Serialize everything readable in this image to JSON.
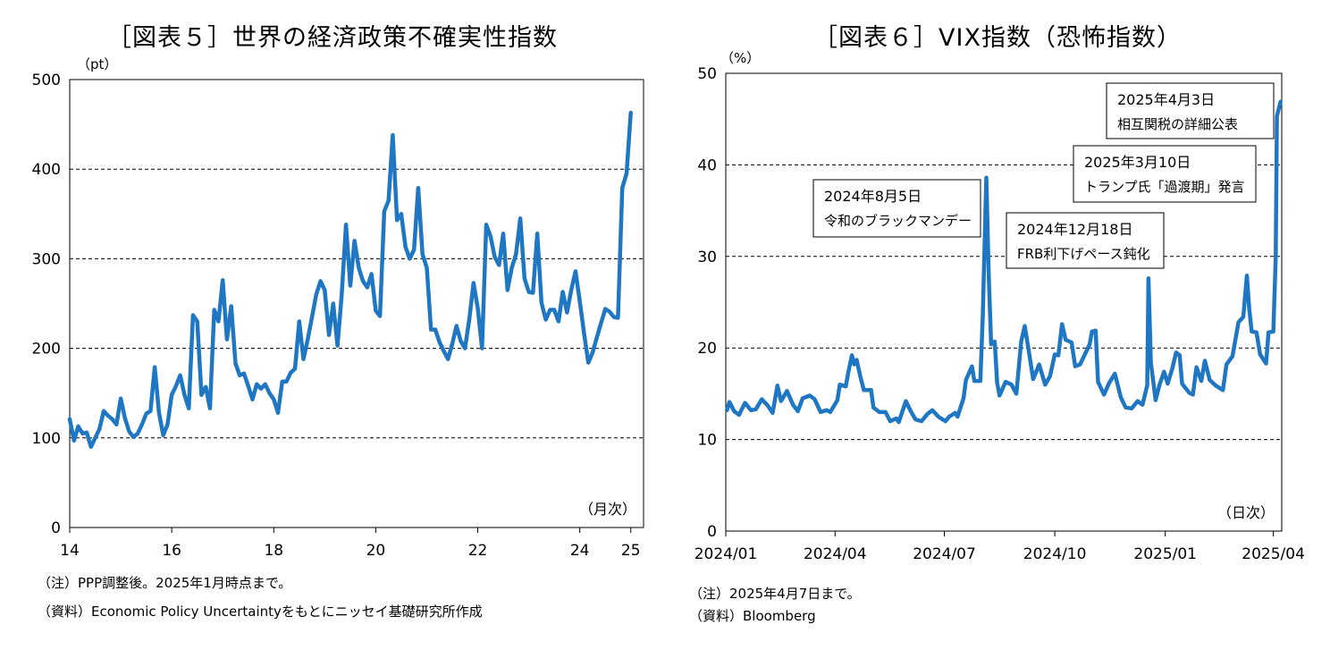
{
  "chart_data": [
    {
      "type": "line",
      "title": "［図表５］世界の経済政策不確実性指数",
      "unit_label": "（pt）",
      "frequency_label": "（月次）",
      "ylim": [
        0,
        500
      ],
      "yticks": [
        0,
        100,
        200,
        300,
        400,
        500
      ],
      "xlim": [
        2014,
        2025.25
      ],
      "xtick_labels": [
        "14",
        "16",
        "18",
        "20",
        "22",
        "24",
        "25"
      ],
      "xtick_positions": [
        2014,
        2016,
        2018,
        2020,
        2022,
        2024,
        2025
      ],
      "grid": "horizontal dashed",
      "color": "#1f77c4",
      "series": [
        {
          "x_start": 2014.0,
          "x_step": 0.08333,
          "values": [
            121,
            97,
            113,
            105,
            106,
            90,
            100,
            110,
            130,
            125,
            121,
            115,
            144,
            122,
            107,
            101,
            105,
            115,
            127,
            130,
            179,
            128,
            103,
            115,
            148,
            158,
            170,
            148,
            133,
            237,
            230,
            148,
            157,
            133,
            243,
            230,
            276,
            210,
            247,
            183,
            170,
            172,
            158,
            143,
            160,
            155,
            160,
            150,
            143,
            128,
            163,
            163,
            173,
            177,
            230,
            188,
            210,
            235,
            260,
            275,
            265,
            215,
            250,
            203,
            260,
            338,
            270,
            320,
            290,
            275,
            268,
            283,
            242,
            236,
            353,
            365,
            438,
            343,
            350,
            313,
            300,
            310,
            379,
            305,
            290,
            221,
            221,
            207,
            197,
            188,
            205,
            225,
            208,
            200,
            232,
            273,
            245,
            200,
            338,
            325,
            302,
            293,
            328,
            265,
            290,
            305,
            345,
            278,
            263,
            262,
            328,
            251,
            232,
            243,
            243,
            230,
            263,
            240,
            265,
            286,
            253,
            217,
            184,
            195,
            212,
            228,
            244,
            241,
            235,
            234,
            379,
            395,
            463
          ]
        }
      ],
      "notes": [
        "（注）PPP調整後。2025年1月時点まで。",
        "（資料）Economic Policy Uncertaintyをもとにニッセイ基礎研究所作成"
      ]
    },
    {
      "type": "line",
      "title": "［図表６］VIX指数（恐怖指数）",
      "unit_label": "（%）",
      "frequency_label": "（日次）",
      "ylim": [
        0,
        50
      ],
      "yticks": [
        0,
        10,
        20,
        30,
        40,
        50
      ],
      "xlim": [
        "2024-01-01",
        "2025-04-08"
      ],
      "xtick_labels": [
        "2024/01",
        "2024/04",
        "2024/07",
        "2024/10",
        "2025/01",
        "2025/04"
      ],
      "xtick_dates": [
        "2024-01-01",
        "2024-04-01",
        "2024-07-01",
        "2024-10-01",
        "2025-01-01",
        "2025-04-01"
      ],
      "grid": "horizontal dashed",
      "color": "#1f77c4",
      "series": [
        {
          "points": [
            [
              "2024-01-02",
              13.2
            ],
            [
              "2024-01-04",
              14.1
            ],
            [
              "2024-01-08",
              13.1
            ],
            [
              "2024-01-12",
              12.7
            ],
            [
              "2024-01-17",
              14.0
            ],
            [
              "2024-01-22",
              13.2
            ],
            [
              "2024-01-26",
              13.3
            ],
            [
              "2024-01-31",
              14.4
            ],
            [
              "2024-02-05",
              13.7
            ],
            [
              "2024-02-09",
              12.9
            ],
            [
              "2024-02-13",
              15.9
            ],
            [
              "2024-02-16",
              14.2
            ],
            [
              "2024-02-21",
              15.3
            ],
            [
              "2024-02-26",
              13.8
            ],
            [
              "2024-03-01",
              13.1
            ],
            [
              "2024-03-05",
              14.5
            ],
            [
              "2024-03-11",
              14.8
            ],
            [
              "2024-03-15",
              14.4
            ],
            [
              "2024-03-20",
              13.0
            ],
            [
              "2024-03-25",
              13.2
            ],
            [
              "2024-03-28",
              13.0
            ],
            [
              "2024-04-03",
              14.3
            ],
            [
              "2024-04-05",
              16.0
            ],
            [
              "2024-04-10",
              15.8
            ],
            [
              "2024-04-12",
              17.3
            ],
            [
              "2024-04-15",
              19.2
            ],
            [
              "2024-04-17",
              18.2
            ],
            [
              "2024-04-19",
              18.7
            ],
            [
              "2024-04-22",
              16.9
            ],
            [
              "2024-04-25",
              15.4
            ],
            [
              "2024-04-29",
              15.4
            ],
            [
              "2024-05-01",
              15.4
            ],
            [
              "2024-05-03",
              13.5
            ],
            [
              "2024-05-08",
              13.0
            ],
            [
              "2024-05-13",
              13.0
            ],
            [
              "2024-05-17",
              12.0
            ],
            [
              "2024-05-22",
              12.3
            ],
            [
              "2024-05-24",
              11.9
            ],
            [
              "2024-05-30",
              14.2
            ],
            [
              "2024-06-03",
              13.1
            ],
            [
              "2024-06-07",
              12.2
            ],
            [
              "2024-06-12",
              12.0
            ],
            [
              "2024-06-17",
              12.8
            ],
            [
              "2024-06-21",
              13.2
            ],
            [
              "2024-06-26",
              12.5
            ],
            [
              "2024-07-02",
              12.0
            ],
            [
              "2024-07-05",
              12.5
            ],
            [
              "2024-07-10",
              12.9
            ],
            [
              "2024-07-12",
              12.5
            ],
            [
              "2024-07-17",
              14.5
            ],
            [
              "2024-07-19",
              16.5
            ],
            [
              "2024-07-24",
              18.0
            ],
            [
              "2024-07-26",
              16.4
            ],
            [
              "2024-07-31",
              16.4
            ],
            [
              "2024-08-02",
              23.4
            ],
            [
              "2024-08-05",
              38.6
            ],
            [
              "2024-08-07",
              27.9
            ],
            [
              "2024-08-09",
              20.4
            ],
            [
              "2024-08-12",
              20.7
            ],
            [
              "2024-08-14",
              16.2
            ],
            [
              "2024-08-16",
              14.8
            ],
            [
              "2024-08-21",
              16.3
            ],
            [
              "2024-08-26",
              16.0
            ],
            [
              "2024-08-30",
              15.0
            ],
            [
              "2024-09-03",
              20.7
            ],
            [
              "2024-09-06",
              22.4
            ],
            [
              "2024-09-10",
              19.1
            ],
            [
              "2024-09-13",
              16.6
            ],
            [
              "2024-09-18",
              18.2
            ],
            [
              "2024-09-23",
              16.0
            ],
            [
              "2024-09-27",
              16.9
            ],
            [
              "2024-10-01",
              19.3
            ],
            [
              "2024-10-04",
              19.2
            ],
            [
              "2024-10-07",
              22.6
            ],
            [
              "2024-10-10",
              20.9
            ],
            [
              "2024-10-15",
              20.6
            ],
            [
              "2024-10-18",
              18.0
            ],
            [
              "2024-10-22",
              18.2
            ],
            [
              "2024-10-25",
              19.0
            ],
            [
              "2024-10-30",
              20.4
            ],
            [
              "2024-11-01",
              21.8
            ],
            [
              "2024-11-04",
              21.9
            ],
            [
              "2024-11-06",
              16.3
            ],
            [
              "2024-11-11",
              14.9
            ],
            [
              "2024-11-15",
              16.1
            ],
            [
              "2024-11-20",
              17.2
            ],
            [
              "2024-11-25",
              14.6
            ],
            [
              "2024-11-29",
              13.5
            ],
            [
              "2024-12-04",
              13.4
            ],
            [
              "2024-12-09",
              14.2
            ],
            [
              "2024-12-13",
              13.8
            ],
            [
              "2024-12-17",
              15.9
            ],
            [
              "2024-12-18",
              27.6
            ],
            [
              "2024-12-20",
              18.4
            ],
            [
              "2024-12-24",
              14.3
            ],
            [
              "2024-12-27",
              15.9
            ],
            [
              "2024-12-31",
              17.4
            ],
            [
              "2025-01-03",
              16.1
            ],
            [
              "2025-01-07",
              17.8
            ],
            [
              "2025-01-10",
              19.5
            ],
            [
              "2025-01-13",
              19.2
            ],
            [
              "2025-01-15",
              16.1
            ],
            [
              "2025-01-21",
              15.1
            ],
            [
              "2025-01-24",
              14.9
            ],
            [
              "2025-01-27",
              17.9
            ],
            [
              "2025-01-31",
              16.4
            ],
            [
              "2025-02-03",
              18.6
            ],
            [
              "2025-02-07",
              16.5
            ],
            [
              "2025-02-12",
              15.9
            ],
            [
              "2025-02-18",
              15.4
            ],
            [
              "2025-02-21",
              18.2
            ],
            [
              "2025-02-26",
              19.1
            ],
            [
              "2025-03-03",
              22.8
            ],
            [
              "2025-03-07",
              23.4
            ],
            [
              "2025-03-10",
              27.9
            ],
            [
              "2025-03-12",
              24.2
            ],
            [
              "2025-03-14",
              21.8
            ],
            [
              "2025-03-18",
              21.7
            ],
            [
              "2025-03-21",
              19.3
            ],
            [
              "2025-03-26",
              18.3
            ],
            [
              "2025-03-28",
              21.7
            ],
            [
              "2025-04-01",
              21.8
            ],
            [
              "2025-04-03",
              30.0
            ],
            [
              "2025-04-04",
              45.3
            ],
            [
              "2025-04-07",
              46.9
            ]
          ]
        }
      ],
      "annotations": [
        {
          "line1": "2024年8月5日",
          "line2": "令和のブラックマンデー"
        },
        {
          "line1": "2024年12月18日",
          "line2": "FRB利下げペース鈍化"
        },
        {
          "line1": "2025年3月10日",
          "line2": "トランプ氏「過渡期」発言"
        },
        {
          "line1": "2025年4月3日",
          "line2": "相互関税の詳細公表"
        }
      ],
      "notes": [
        "（注）2025年4月7日まで。",
        "（資料）Bloomberg"
      ]
    }
  ]
}
